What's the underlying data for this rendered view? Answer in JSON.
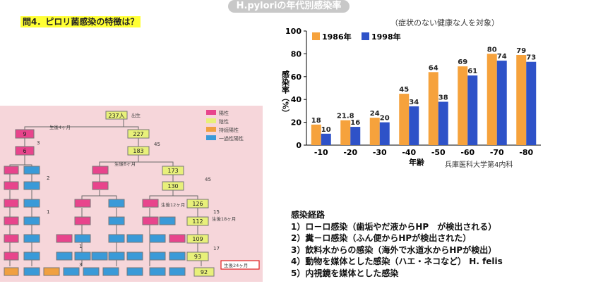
{
  "question": "問4．ピロリ菌感染の特徴は？",
  "chart_data": {
    "type": "bar",
    "title": "H.pyloriの年代別感染率",
    "subtitle": "（症状のない健康な人を対象）",
    "ylabel": "感染率（%）",
    "xlabel": "年齢",
    "categories": [
      "-10",
      "-20",
      "-30",
      "-40",
      "-50",
      "-60",
      "-70",
      "-80"
    ],
    "series": [
      {
        "name": "1986年",
        "color": "#f6a23c",
        "values": [
          18,
          21.8,
          24,
          45,
          64,
          69,
          80,
          79
        ]
      },
      {
        "name": "1998年",
        "color": "#2e52c8",
        "values": [
          10,
          16,
          20,
          34,
          38,
          61,
          74,
          73
        ]
      }
    ],
    "ylim": [
      0,
      100
    ],
    "yticks": [
      0,
      20,
      40,
      60,
      80,
      100
    ],
    "grid": false,
    "legend": "top-left",
    "credit": "兵庫医科大学第4内科"
  },
  "tree": {
    "root_label": "出生",
    "legend": [
      "陽性",
      "陰性",
      "持続陽性",
      "一過性陽性"
    ],
    "legend_colors": [
      "#e8448c",
      "#e8f07a",
      "#f0a040",
      "#3a9ad8"
    ],
    "nodes": [
      "237人",
      "9",
      "227",
      "6",
      "183",
      "173",
      "130",
      "126",
      "112",
      "109",
      "93",
      "92"
    ],
    "labels": [
      "生後4ヶ月",
      "生後8ヶ月",
      "生後12ヶ月",
      "生後18ヶ月",
      "生後24ヶ月"
    ],
    "side_numbers": [
      "3",
      "45",
      "2",
      "45",
      "1",
      "15",
      "1",
      "17",
      "3"
    ]
  },
  "routes": {
    "heading": "感染経路",
    "items": [
      "1）ロ－ロ感染（歯垢やだ液からHP　が検出される）",
      "2）糞－ロ感染（ふん便からHPが検出された）",
      "3）飲料水からの感染（海外で水道水からHPが検出）",
      "4）動物を媒体とした感染（ハエ・ネコなど）  H. felis",
      "5）内視鏡を媒体とした感染"
    ]
  }
}
